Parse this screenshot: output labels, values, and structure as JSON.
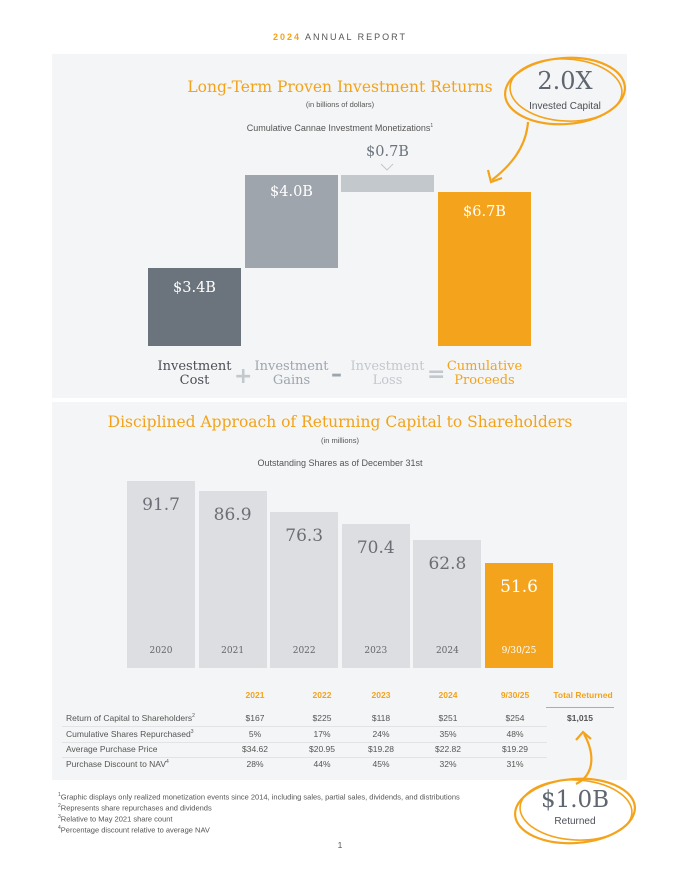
{
  "header": {
    "year": "2024",
    "title": "ANNUAL REPORT"
  },
  "section1": {
    "title": "Long-Term Proven Investment Returns",
    "subtitle": "(in billions of dollars)",
    "caption": "Cumulative Cannae Investment Monetizations",
    "caption_sup": "1",
    "callout": {
      "value": "2.0X",
      "label": "Invested Capital"
    },
    "bars": [
      {
        "label": "$3.4B",
        "value": 3.4,
        "color": "#6b737c"
      },
      {
        "label": "$4.0B",
        "value": 4.0,
        "color": "#9ea5ad"
      },
      {
        "label": "$0.7B",
        "value": 0.7,
        "color": "#c3c8cd"
      },
      {
        "label": "$6.7B",
        "value": 6.7,
        "color": "#f4a41c"
      }
    ],
    "equation": {
      "term1": {
        "line1": "Investment",
        "line2": "Cost",
        "color": "#4b4f55"
      },
      "op1": "+",
      "term2": {
        "line1": "Investment",
        "line2": "Gains",
        "color": "#9ea5ad"
      },
      "op2": "–",
      "term3": {
        "line1": "Investment",
        "line2": "Loss",
        "color": "#c3c8cd"
      },
      "op3": "=",
      "term4": {
        "line1": "Cumulative",
        "line2": "Proceeds",
        "color": "#f2a31b"
      }
    }
  },
  "section2": {
    "title": "Disciplined Approach of Returning Capital to Shareholders",
    "subtitle": "(in millions)",
    "caption": "Outstanding Shares as of December 31st",
    "chart_data": {
      "type": "bar",
      "title": "Outstanding Shares as of December 31st",
      "ylabel": "(in millions)",
      "categories": [
        "2020",
        "2021",
        "2022",
        "2023",
        "2024",
        "9/30/25"
      ],
      "values": [
        91.7,
        86.9,
        76.3,
        70.4,
        62.8,
        51.6
      ],
      "value_labels": [
        "91.7",
        "86.9",
        "76.3",
        "70.4",
        "62.8",
        "51.6"
      ],
      "highlight_index": 5,
      "colors": {
        "base": "#dcdee1",
        "highlight": "#f4a41c"
      },
      "ylim": [
        0,
        91.7
      ]
    }
  },
  "table": {
    "columns": [
      "2021",
      "2022",
      "2023",
      "2024",
      "9/30/25"
    ],
    "total_header": "Total Returned",
    "rows": [
      {
        "label": "Return of Capital to Shareholders",
        "sup": "2",
        "values": [
          "$167",
          "$225",
          "$118",
          "$251",
          "$254"
        ],
        "total": "$1,015"
      },
      {
        "label": "Cumulative Shares Repurchased",
        "sup": "3",
        "values": [
          "5%",
          "17%",
          "24%",
          "35%",
          "48%"
        ],
        "total": ""
      },
      {
        "label": "Average Purchase Price",
        "sup": "",
        "values": [
          "$34.62",
          "$20.95",
          "$19.28",
          "$22.82",
          "$19.29"
        ],
        "total": ""
      },
      {
        "label": "Purchase Discount to NAV",
        "sup": "4",
        "values": [
          "28%",
          "44%",
          "45%",
          "32%",
          "31%"
        ],
        "total": ""
      }
    ],
    "callout": {
      "value": "$1.0B",
      "label": "Returned"
    }
  },
  "footnotes": [
    {
      "num": "1",
      "text": "Graphic displays only realized monetization events since 2014, including sales, partial sales, dividends, and distributions"
    },
    {
      "num": "2",
      "text": "Represents share repurchases and dividends"
    },
    {
      "num": "3",
      "text": "Relative to May 2021 share count"
    },
    {
      "num": "4",
      "text": "Percentage discount relative to average NAV"
    }
  ],
  "page_number": "1",
  "colors": {
    "accent": "#f2a31b",
    "panel": "#f4f5f6",
    "dark_bar": "#6b737c",
    "mid_bar": "#9ea5ad",
    "light_bar": "#c3c8cd"
  }
}
